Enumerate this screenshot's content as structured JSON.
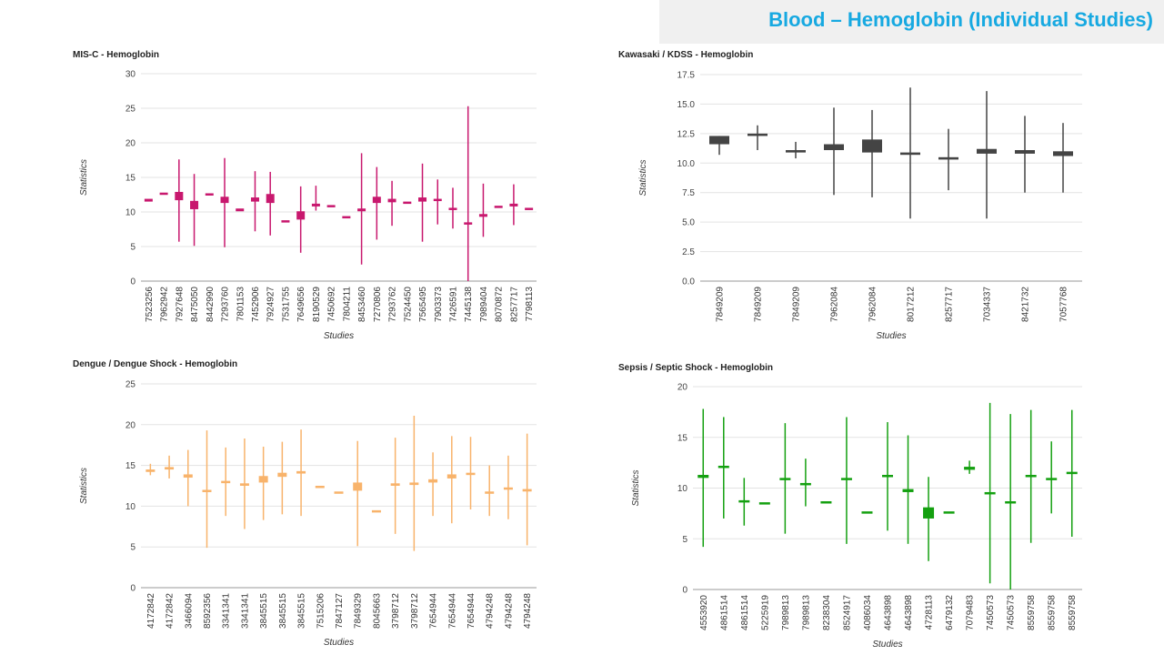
{
  "page": {
    "title": "Blood – Hemoglobin (Individual Studies)"
  },
  "chart_data": [
    {
      "type": "boxplot",
      "title": "MIS-C - Hemoglobin",
      "xlabel": "Studies",
      "ylabel": "Statistics",
      "ylim": [
        0,
        30
      ],
      "yticks": [
        "0",
        "5",
        "10",
        "15",
        "20",
        "25",
        "30"
      ],
      "color": "#c8186e",
      "categories": [
        "7523256",
        "7962942",
        "7927648",
        "8475050",
        "8442990",
        "7293760",
        "7801153",
        "7452906",
        "7924927",
        "7531755",
        "7649656",
        "8190529",
        "7450692",
        "7804211",
        "8453460",
        "7270806",
        "7293762",
        "7524450",
        "7565495",
        "7903373",
        "7426591",
        "7445138",
        "7989404",
        "8070872",
        "8257717",
        "7798113"
      ],
      "values": [
        {
          "low": null,
          "q1": 11.5,
          "q3": 11.9,
          "high": null
        },
        {
          "low": null,
          "q1": 12.5,
          "q3": 12.8,
          "high": null
        },
        {
          "low": 5.7,
          "q1": 11.7,
          "q3": 12.9,
          "high": 17.6
        },
        {
          "low": 5.1,
          "q1": 10.4,
          "q3": 11.6,
          "high": 15.5
        },
        {
          "low": null,
          "q1": 12.4,
          "q3": 12.7,
          "high": null
        },
        {
          "low": 4.9,
          "q1": 11.3,
          "q3": 12.2,
          "high": 17.8
        },
        {
          "low": null,
          "q1": 10.1,
          "q3": 10.5,
          "high": null
        },
        {
          "low": 7.2,
          "q1": 11.5,
          "q3": 12.1,
          "high": 15.9
        },
        {
          "low": 6.6,
          "q1": 11.3,
          "q3": 12.6,
          "high": 15.8
        },
        {
          "low": null,
          "q1": 8.5,
          "q3": 8.8,
          "high": null
        },
        {
          "low": 4.1,
          "q1": 8.9,
          "q3": 10.1,
          "high": 13.7
        },
        {
          "low": 10.2,
          "q1": 10.8,
          "q3": 11.2,
          "high": 13.8
        },
        {
          "low": null,
          "q1": 10.7,
          "q3": 11.0,
          "high": null
        },
        {
          "low": null,
          "q1": 9.1,
          "q3": 9.4,
          "high": null
        },
        {
          "low": 2.4,
          "q1": 10.1,
          "q3": 10.5,
          "high": 18.5
        },
        {
          "low": 6.0,
          "q1": 11.3,
          "q3": 12.2,
          "high": 16.5
        },
        {
          "low": 8.0,
          "q1": 11.4,
          "q3": 11.9,
          "high": 14.5
        },
        {
          "low": null,
          "q1": 11.2,
          "q3": 11.5,
          "high": null
        },
        {
          "low": 5.7,
          "q1": 11.5,
          "q3": 12.1,
          "high": 17.0
        },
        {
          "low": 8.2,
          "q1": 11.6,
          "q3": 11.9,
          "high": 14.7
        },
        {
          "low": 7.6,
          "q1": 10.3,
          "q3": 10.6,
          "high": 13.5
        },
        {
          "low": 0,
          "q1": 8.2,
          "q3": 8.5,
          "high": 25.3
        },
        {
          "low": 6.4,
          "q1": 9.3,
          "q3": 9.7,
          "high": 14.1
        },
        {
          "low": null,
          "q1": 10.6,
          "q3": 10.9,
          "high": null
        },
        {
          "low": 8.1,
          "q1": 10.8,
          "q3": 11.2,
          "high": 14.0
        },
        {
          "low": null,
          "q1": 10.3,
          "q3": 10.6,
          "high": null
        }
      ]
    },
    {
      "type": "boxplot",
      "title": "Kawasaki / KDSS - Hemoglobin",
      "xlabel": "Studies",
      "ylabel": "Statistics",
      "ylim": [
        0,
        17.5
      ],
      "yticks": [
        "0.0",
        "2.5",
        "5.0",
        "7.5",
        "10.0",
        "12.5",
        "15.0",
        "17.5"
      ],
      "color": "#444444",
      "categories": [
        "7849209",
        "7849209",
        "7849209",
        "7962084",
        "7962084",
        "8017212",
        "8257717",
        "7034337",
        "8421732",
        "7057768"
      ],
      "values": [
        {
          "low": 10.7,
          "q1": 11.6,
          "q3": 12.3,
          "high": null
        },
        {
          "low": 11.1,
          "q1": 12.3,
          "q3": 12.5,
          "high": 13.2
        },
        {
          "low": 10.4,
          "q1": 10.9,
          "q3": 11.1,
          "high": 11.8
        },
        {
          "low": 7.3,
          "q1": 11.1,
          "q3": 11.6,
          "high": 14.7
        },
        {
          "low": 7.1,
          "q1": 10.9,
          "q3": 12.0,
          "high": 14.5
        },
        {
          "low": 5.3,
          "q1": 10.7,
          "q3": 10.9,
          "high": 16.4
        },
        {
          "low": 7.7,
          "q1": 10.3,
          "q3": 10.5,
          "high": 12.9
        },
        {
          "low": 5.3,
          "q1": 10.8,
          "q3": 11.2,
          "high": 16.1
        },
        {
          "low": 7.5,
          "q1": 10.8,
          "q3": 11.1,
          "high": 14.0
        },
        {
          "low": 7.5,
          "q1": 10.6,
          "q3": 11.0,
          "high": 13.4
        }
      ]
    },
    {
      "type": "boxplot",
      "title": "Dengue / Dengue Shock - Hemoglobin",
      "xlabel": "Studies",
      "ylabel": "Statistics",
      "ylim": [
        0,
        25
      ],
      "yticks": [
        "0",
        "5",
        "10",
        "15",
        "20",
        "25"
      ],
      "color": "#f8b36b",
      "categories": [
        "4172842",
        "4172842",
        "3466094",
        "8592356",
        "3341341",
        "3341341",
        "3845515",
        "3845515",
        "3845515",
        "7515206",
        "7847127",
        "7849329",
        "8045663",
        "3798712",
        "3798712",
        "7654944",
        "7654944",
        "7654944",
        "4794248",
        "4794248",
        "4794248"
      ],
      "values": [
        {
          "low": 13.8,
          "q1": 14.2,
          "q3": 14.5,
          "high": 15.2
        },
        {
          "low": 13.4,
          "q1": 14.5,
          "q3": 14.8,
          "high": 16.2
        },
        {
          "low": 10.0,
          "q1": 13.5,
          "q3": 13.9,
          "high": 16.9
        },
        {
          "low": 4.9,
          "q1": 11.8,
          "q3": 12.0,
          "high": 19.3
        },
        {
          "low": 8.8,
          "q1": 12.9,
          "q3": 13.1,
          "high": 17.2
        },
        {
          "low": 7.2,
          "q1": 12.5,
          "q3": 12.8,
          "high": 18.3
        },
        {
          "low": 8.3,
          "q1": 12.9,
          "q3": 13.7,
          "high": 17.3
        },
        {
          "low": 9.0,
          "q1": 13.6,
          "q3": 14.1,
          "high": 17.9
        },
        {
          "low": 8.8,
          "q1": 14.0,
          "q3": 14.3,
          "high": 19.4
        },
        {
          "low": null,
          "q1": 12.3,
          "q3": 12.5,
          "high": null
        },
        {
          "low": null,
          "q1": 11.6,
          "q3": 11.8,
          "high": null
        },
        {
          "low": 5.1,
          "q1": 11.9,
          "q3": 12.9,
          "high": 18.0
        },
        {
          "low": null,
          "q1": 9.3,
          "q3": 9.5,
          "high": null
        },
        {
          "low": 6.6,
          "q1": 12.5,
          "q3": 12.8,
          "high": 18.4
        },
        {
          "low": 4.5,
          "q1": 12.6,
          "q3": 12.9,
          "high": 21.1
        },
        {
          "low": 8.8,
          "q1": 12.9,
          "q3": 13.3,
          "high": 16.6
        },
        {
          "low": 7.9,
          "q1": 13.4,
          "q3": 13.9,
          "high": 18.6
        },
        {
          "low": 9.6,
          "q1": 13.9,
          "q3": 14.1,
          "high": 18.5
        },
        {
          "low": 8.8,
          "q1": 11.6,
          "q3": 11.8,
          "high": 15.0
        },
        {
          "low": 8.4,
          "q1": 12.1,
          "q3": 12.3,
          "high": 16.2
        },
        {
          "low": 5.2,
          "q1": 11.8,
          "q3": 12.1,
          "high": 18.9
        }
      ]
    },
    {
      "type": "boxplot",
      "title": "Sepsis / Septic Shock - Hemoglobin",
      "xlabel": "Studies",
      "ylabel": "Statistics",
      "ylim": [
        0,
        20
      ],
      "yticks": [
        "0",
        "5",
        "10",
        "15",
        "20"
      ],
      "color": "#14a010",
      "categories": [
        "4553920",
        "4861514",
        "4861514",
        "5225919",
        "7989813",
        "7989813",
        "8238304",
        "8524917",
        "4086034",
        "4643898",
        "4643898",
        "4728113",
        "6479132",
        "7079483",
        "7450573",
        "7450573",
        "8559758",
        "8559758",
        "8559758"
      ],
      "values": [
        {
          "low": 4.2,
          "q1": 11.0,
          "q3": 11.3,
          "high": 17.8
        },
        {
          "low": 7.0,
          "q1": 12.0,
          "q3": 12.2,
          "high": 17.0
        },
        {
          "low": 6.3,
          "q1": 8.6,
          "q3": 8.8,
          "high": 11.0
        },
        {
          "low": null,
          "q1": 8.4,
          "q3": 8.6,
          "high": null
        },
        {
          "low": 5.5,
          "q1": 10.8,
          "q3": 11.0,
          "high": 16.4
        },
        {
          "low": 8.2,
          "q1": 10.3,
          "q3": 10.5,
          "high": 12.9
        },
        {
          "low": null,
          "q1": 8.5,
          "q3": 8.7,
          "high": null
        },
        {
          "low": 4.5,
          "q1": 10.8,
          "q3": 11.0,
          "high": 17.0
        },
        {
          "low": null,
          "q1": 7.5,
          "q3": 7.7,
          "high": null
        },
        {
          "low": 5.8,
          "q1": 11.1,
          "q3": 11.3,
          "high": 16.5
        },
        {
          "low": 4.5,
          "q1": 9.6,
          "q3": 9.9,
          "high": 15.2
        },
        {
          "low": 2.8,
          "q1": 7.0,
          "q3": 8.1,
          "high": 11.1
        },
        {
          "low": null,
          "q1": 7.5,
          "q3": 7.7,
          "high": null
        },
        {
          "low": 11.4,
          "q1": 11.8,
          "q3": 12.1,
          "high": 12.7
        },
        {
          "low": 0.6,
          "q1": 9.4,
          "q3": 9.6,
          "high": 18.4
        },
        {
          "low": 0,
          "q1": 8.5,
          "q3": 8.7,
          "high": 17.3
        },
        {
          "low": 4.6,
          "q1": 11.1,
          "q3": 11.3,
          "high": 17.7
        },
        {
          "low": 7.5,
          "q1": 10.8,
          "q3": 11.0,
          "high": 14.6
        },
        {
          "low": 5.2,
          "q1": 11.4,
          "q3": 11.6,
          "high": 17.7
        }
      ]
    }
  ]
}
